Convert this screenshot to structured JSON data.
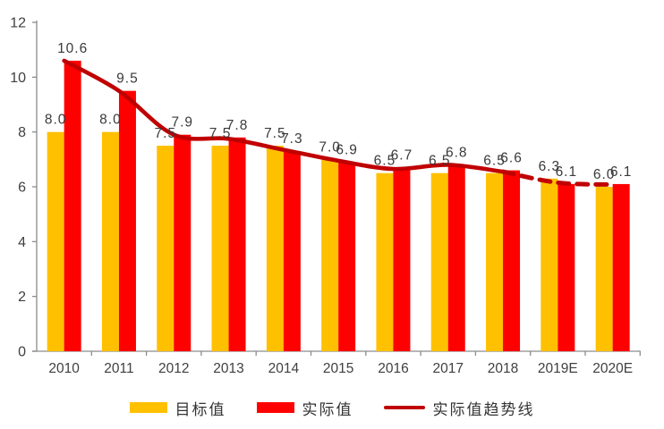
{
  "chart_data": {
    "type": "bar",
    "subtype": "grouped-bars-with-trendline",
    "categories": [
      "2010",
      "2011",
      "2012",
      "2013",
      "2014",
      "2015",
      "2016",
      "2017",
      "2018",
      "2019E",
      "2020E"
    ],
    "series": [
      {
        "name": "目标值",
        "type": "bar",
        "color": "#FFC000",
        "values": [
          8.0,
          8.0,
          7.5,
          7.5,
          7.5,
          7.0,
          6.5,
          6.5,
          6.5,
          6.3,
          6.0
        ]
      },
      {
        "name": "实际值",
        "type": "bar",
        "color": "#FF0000",
        "values": [
          10.6,
          9.5,
          7.9,
          7.8,
          7.3,
          6.9,
          6.7,
          6.8,
          6.6,
          6.1,
          6.1
        ]
      },
      {
        "name": "实际值趋势线",
        "type": "line",
        "color": "#C00000",
        "values": [
          10.6,
          9.5,
          7.9,
          7.75,
          7.35,
          6.95,
          6.65,
          6.8,
          6.55,
          6.15,
          6.08
        ],
        "solid_until_index": 8,
        "dashed_from_index": 8
      }
    ],
    "title": "",
    "xlabel": "",
    "ylabel": "",
    "ylim": [
      0,
      12
    ],
    "yticks": [
      0,
      2,
      4,
      6,
      8,
      10,
      12
    ],
    "grid": false,
    "data_labels": true,
    "legend_position": "bottom"
  },
  "colors": {
    "target_bar": "#FFC000",
    "actual_bar": "#FF0000",
    "trend_line": "#C00000",
    "axis": "#8C8C8C",
    "tick_text": "#404040",
    "data_label_text": "#3A3A3A",
    "background": "#FFFFFF"
  }
}
